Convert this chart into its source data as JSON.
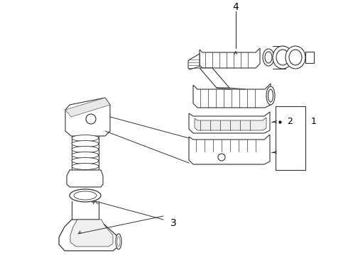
{
  "background_color": "#ffffff",
  "line_color": "#333333",
  "text_color": "#000000",
  "fig_width": 4.9,
  "fig_height": 3.6,
  "dpi": 100,
  "label_fontsize": 9,
  "lw": 0.8
}
